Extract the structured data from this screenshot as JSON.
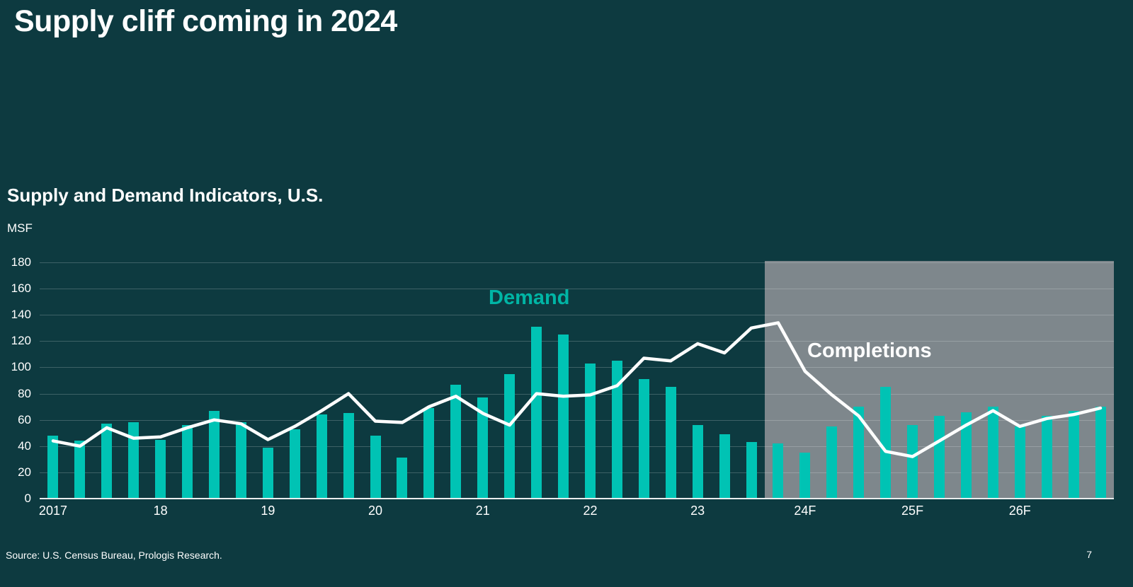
{
  "slide": {
    "title": "Supply cliff coming in 2024",
    "source": "Source: U.S. Census Bureau, Prologis Research.",
    "page_number": "7"
  },
  "chart": {
    "title": "Supply and Demand Indicators, U.S.",
    "unit_label": "MSF",
    "demand_label": "Demand",
    "completions_label": "Completions",
    "colors": {
      "background": "#0d3a40",
      "bar": "#00c3b4",
      "line": "#ffffff",
      "forecast_box": "#7e878c",
      "demand_label": "#00b5a5",
      "completions_label": "#ffffff"
    }
  },
  "chart_data": {
    "type": "bar+line",
    "title": "Supply and Demand Indicators, U.S.",
    "ylabel": "MSF",
    "ylim": [
      0,
      180
    ],
    "y_ticks": [
      0,
      20,
      40,
      60,
      80,
      100,
      120,
      140,
      160,
      180
    ],
    "grid": "horizontal",
    "x_year_labels": [
      "2017",
      "18",
      "19",
      "20",
      "21",
      "22",
      "23",
      "24F",
      "25F",
      "26F"
    ],
    "quarters_per_year": 4,
    "forecast_region": {
      "start_quarter_index": 27,
      "note": "gray shaded forecast area from late 2023 through 2026F"
    },
    "series": [
      {
        "name": "Demand",
        "type": "bar",
        "values": [
          48,
          44,
          57,
          58,
          45,
          56,
          67,
          58,
          39,
          53,
          64,
          65,
          48,
          31,
          69,
          87,
          77,
          95,
          131,
          125,
          103,
          105,
          91,
          85,
          56,
          49,
          43,
          42,
          35,
          55,
          70,
          85,
          56,
          63,
          66,
          70,
          55,
          63,
          67,
          70
        ]
      },
      {
        "name": "Completions",
        "type": "line",
        "values": [
          44,
          40,
          54,
          46,
          47,
          54,
          60,
          57,
          45,
          55,
          67,
          80,
          59,
          58,
          70,
          78,
          65,
          56,
          80,
          78,
          79,
          86,
          107,
          105,
          118,
          111,
          130,
          134,
          97,
          79,
          63,
          36,
          32,
          44,
          56,
          67,
          55,
          61,
          64,
          69
        ]
      }
    ]
  }
}
